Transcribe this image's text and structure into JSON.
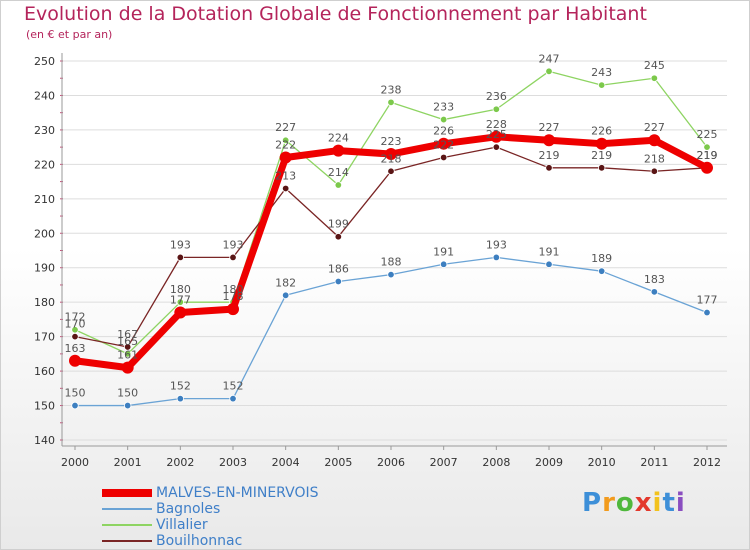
{
  "chart_data": {
    "type": "line",
    "title": "Evolution de la Dotation Globale de Fonctionnement par Habitant",
    "subtitle": "(en € et par an)",
    "categories": [
      "2000",
      "2001",
      "2002",
      "2003",
      "2004",
      "2005",
      "2006",
      "2007",
      "2008",
      "2009",
      "2010",
      "2011",
      "2012"
    ],
    "ylim": [
      140,
      250
    ],
    "yticks": [
      140,
      150,
      160,
      170,
      180,
      190,
      200,
      210,
      220,
      230,
      240,
      250
    ],
    "series": [
      {
        "name": "Bagnoles",
        "color": "#6aa3d5",
        "dot": "#3d7fc0",
        "values": [
          150,
          150,
          152,
          152,
          182,
          186,
          188,
          191,
          193,
          191,
          189,
          183,
          177
        ]
      },
      {
        "name": "Villalier",
        "color": "#8ed462",
        "dot": "#7cc94b",
        "values": [
          172,
          165,
          180,
          180,
          227,
          214,
          238,
          233,
          236,
          247,
          243,
          245,
          225
        ]
      },
      {
        "name": "Bouilhonnac",
        "color": "#7a2525",
        "dot": "#5a1515",
        "values": [
          170,
          167,
          193,
          193,
          213,
          199,
          218,
          222,
          225,
          219,
          219,
          218,
          219
        ]
      },
      {
        "name": "MALVES-EN-MINERVOIS",
        "color": "#ee0000",
        "dot": "#ee0000",
        "values": [
          163,
          161,
          177,
          178,
          222,
          224,
          223,
          226,
          228,
          227,
          226,
          227,
          219
        ]
      }
    ]
  },
  "legend": [
    {
      "label": "MALVES-EN-MINERVOIS",
      "color": "#ee0000",
      "thickness": "thick"
    },
    {
      "label": "Bagnoles",
      "color": "#6aa3d5",
      "thickness": "thin"
    },
    {
      "label": "Villalier",
      "color": "#8ed462",
      "thickness": "thin"
    },
    {
      "label": "Bouilhonnac",
      "color": "#7a2525",
      "thickness": "thin"
    }
  ],
  "brand": {
    "letters": [
      "P",
      "r",
      "o",
      "x",
      "i",
      "t",
      "i"
    ],
    "colors": [
      "#3d8fd8",
      "#f29b1d",
      "#4fb83c",
      "#e3382c",
      "#f2c21d",
      "#3d8fd8",
      "#8a4ec0"
    ]
  }
}
